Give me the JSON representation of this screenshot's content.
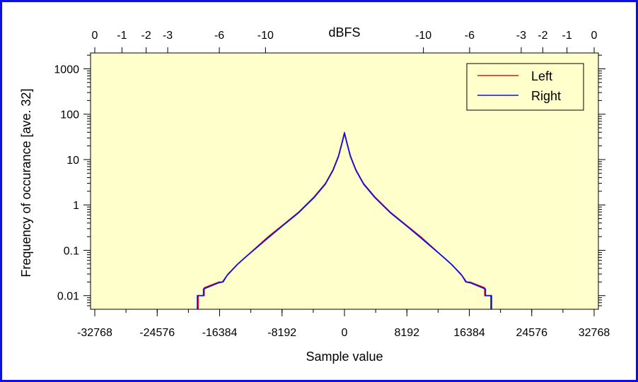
{
  "chart_data": {
    "type": "line",
    "xlabel": "Sample value",
    "ylabel": "Frequency of occurance [ave. 32]",
    "top_axis_label": "dBFS",
    "xlim": [
      -32768,
      32768
    ],
    "ylim_log10": [
      -2.3,
      3.35
    ],
    "y_scale": "log",
    "x_ticks": [
      {
        "value": -32768,
        "label": "-32768"
      },
      {
        "value": -24576,
        "label": "-24576"
      },
      {
        "value": -16384,
        "label": "-16384"
      },
      {
        "value": -8192,
        "label": "-8192"
      },
      {
        "value": 0,
        "label": "0"
      },
      {
        "value": 8192,
        "label": "8192"
      },
      {
        "value": 16384,
        "label": "16384"
      },
      {
        "value": 24576,
        "label": "24576"
      },
      {
        "value": 32768,
        "label": "32768"
      }
    ],
    "y_ticks": [
      {
        "value": 0.01,
        "label": "0.01"
      },
      {
        "value": 0.1,
        "label": "0.1"
      },
      {
        "value": 1,
        "label": "1"
      },
      {
        "value": 10,
        "label": "10"
      },
      {
        "value": 100,
        "label": "100"
      },
      {
        "value": 1000,
        "label": "1000"
      }
    ],
    "top_ticks": [
      {
        "value": -32768,
        "label": "0"
      },
      {
        "value": -29204,
        "label": "-1"
      },
      {
        "value": -26028,
        "label": "-2"
      },
      {
        "value": -23198,
        "label": "-3"
      },
      {
        "value": -16423,
        "label": "-6"
      },
      {
        "value": -10362,
        "label": "-10"
      },
      {
        "value": 10362,
        "label": "-10"
      },
      {
        "value": 16423,
        "label": "-6"
      },
      {
        "value": 23198,
        "label": "-3"
      },
      {
        "value": 26028,
        "label": "-2"
      },
      {
        "value": 29204,
        "label": "-1"
      },
      {
        "value": 32768,
        "label": "0"
      }
    ],
    "legend_position": "top-right",
    "series": [
      {
        "name": "Left",
        "color": "#e81010",
        "points": [
          [
            -19200,
            0.003
          ],
          [
            -19200,
            0.01
          ],
          [
            -18400,
            0.01
          ],
          [
            -18400,
            0.015
          ],
          [
            -16500,
            0.02
          ],
          [
            -15900,
            0.02
          ],
          [
            -15300,
            0.03
          ],
          [
            -14000,
            0.05
          ],
          [
            -13000,
            0.07
          ],
          [
            -12000,
            0.1
          ],
          [
            -10000,
            0.2
          ],
          [
            -8192,
            0.35
          ],
          [
            -6000,
            0.7
          ],
          [
            -4000,
            1.5
          ],
          [
            -2500,
            3
          ],
          [
            -1500,
            6
          ],
          [
            -800,
            12
          ],
          [
            -300,
            25
          ],
          [
            0,
            40
          ],
          [
            300,
            25
          ],
          [
            800,
            12
          ],
          [
            1500,
            6
          ],
          [
            2500,
            3
          ],
          [
            4000,
            1.5
          ],
          [
            6000,
            0.7
          ],
          [
            8192,
            0.35
          ],
          [
            10000,
            0.2
          ],
          [
            12000,
            0.1
          ],
          [
            13000,
            0.07
          ],
          [
            14000,
            0.05
          ],
          [
            15300,
            0.03
          ],
          [
            15900,
            0.02
          ],
          [
            16500,
            0.02
          ],
          [
            18400,
            0.015
          ],
          [
            18400,
            0.01
          ],
          [
            19200,
            0.01
          ],
          [
            19200,
            0.003
          ]
        ]
      },
      {
        "name": "Right",
        "color": "#1010e0",
        "points": [
          [
            -19300,
            0.003
          ],
          [
            -19300,
            0.01
          ],
          [
            -18500,
            0.01
          ],
          [
            -18500,
            0.014
          ],
          [
            -16600,
            0.019
          ],
          [
            -16000,
            0.02
          ],
          [
            -15400,
            0.028
          ],
          [
            -14100,
            0.048
          ],
          [
            -13100,
            0.068
          ],
          [
            -12100,
            0.095
          ],
          [
            -10000,
            0.19
          ],
          [
            -8192,
            0.34
          ],
          [
            -6000,
            0.68
          ],
          [
            -4000,
            1.45
          ],
          [
            -2500,
            2.9
          ],
          [
            -1500,
            5.8
          ],
          [
            -800,
            11.5
          ],
          [
            -300,
            24
          ],
          [
            0,
            38
          ],
          [
            300,
            24
          ],
          [
            800,
            11.5
          ],
          [
            1500,
            5.8
          ],
          [
            2500,
            2.9
          ],
          [
            4000,
            1.45
          ],
          [
            6000,
            0.68
          ],
          [
            8192,
            0.34
          ],
          [
            10000,
            0.19
          ],
          [
            12100,
            0.095
          ],
          [
            13100,
            0.068
          ],
          [
            14100,
            0.048
          ],
          [
            15400,
            0.028
          ],
          [
            16000,
            0.02
          ],
          [
            16600,
            0.019
          ],
          [
            18500,
            0.014
          ],
          [
            18500,
            0.01
          ],
          [
            19300,
            0.01
          ],
          [
            19300,
            0.003
          ]
        ]
      }
    ],
    "colors": {
      "plot_background": "#ffffcc",
      "frame_border": "#0a10e6"
    }
  }
}
